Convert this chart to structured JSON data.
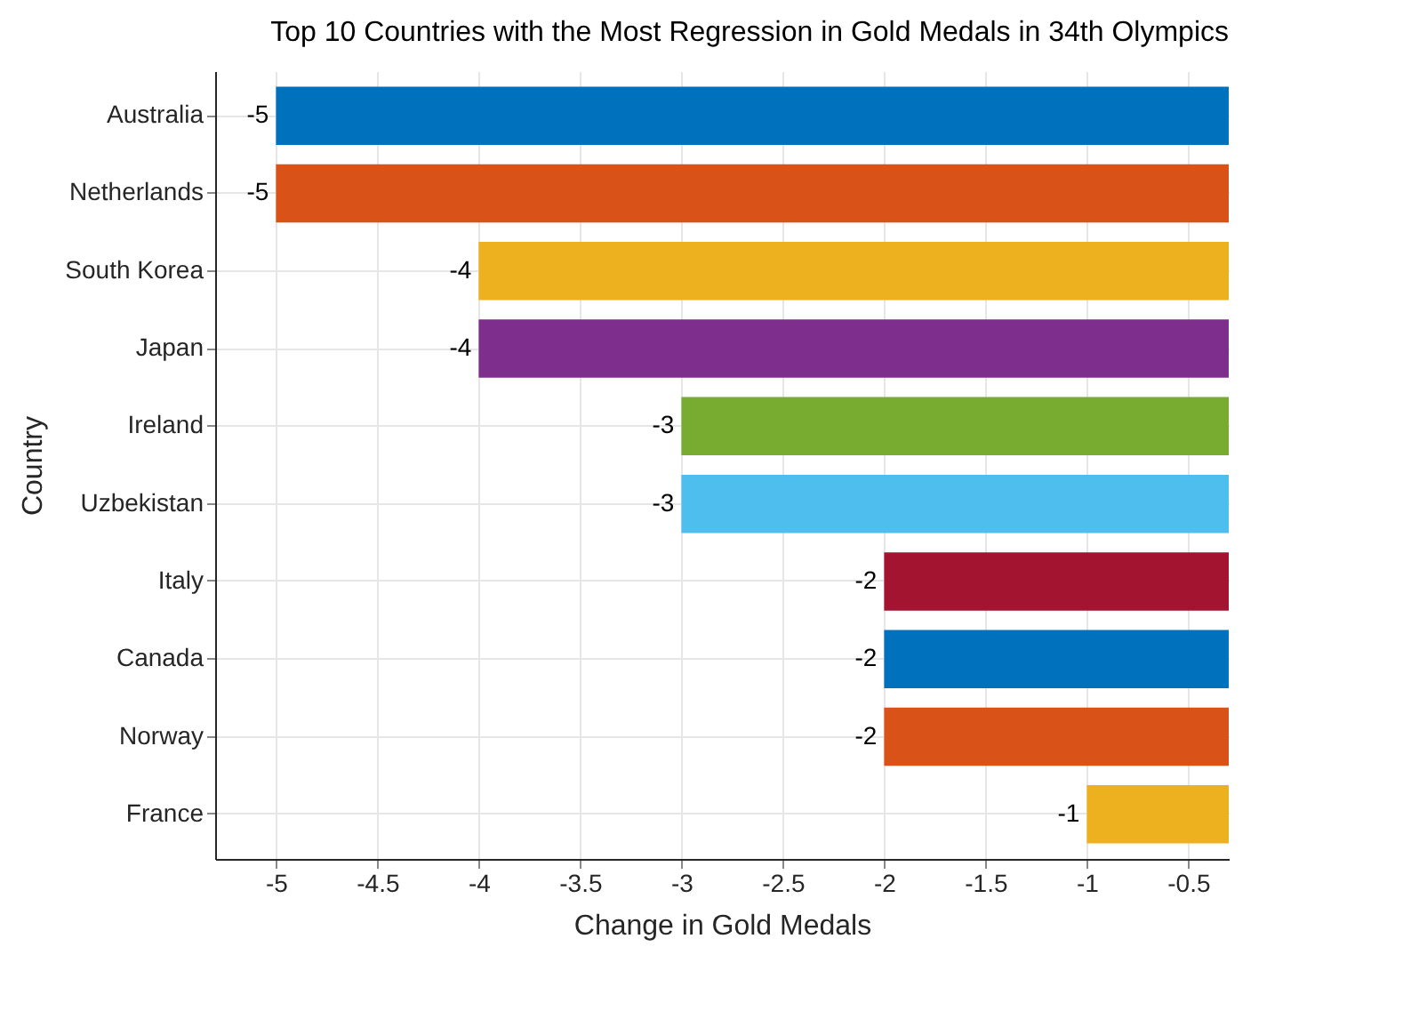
{
  "chart_data": {
    "type": "bar",
    "orientation": "horizontal",
    "title": "Top 10 Countries with the Most Regression in Gold Medals in 34th Olympics",
    "xlabel": "Change in Gold Medals",
    "ylabel": "Country",
    "categories": [
      "Australia",
      "Netherlands",
      "South Korea",
      "Japan",
      "Ireland",
      "Uzbekistan",
      "Italy",
      "Canada",
      "Norway",
      "France"
    ],
    "values": [
      -5,
      -5,
      -4,
      -4,
      -3,
      -3,
      -2,
      -2,
      -2,
      -1
    ],
    "colors": [
      "#0072bd",
      "#d95319",
      "#edb120",
      "#7e2f8e",
      "#77ac30",
      "#4dbeee",
      "#a2142f",
      "#0072bd",
      "#d95319",
      "#edb120"
    ],
    "xlim": [
      -5.3,
      -0.3
    ],
    "xticks": [
      -5,
      -4.5,
      -4,
      -3.5,
      -3,
      -2.5,
      -2,
      -1.5,
      -1,
      -0.5
    ],
    "grid": true,
    "data_labels": true
  }
}
